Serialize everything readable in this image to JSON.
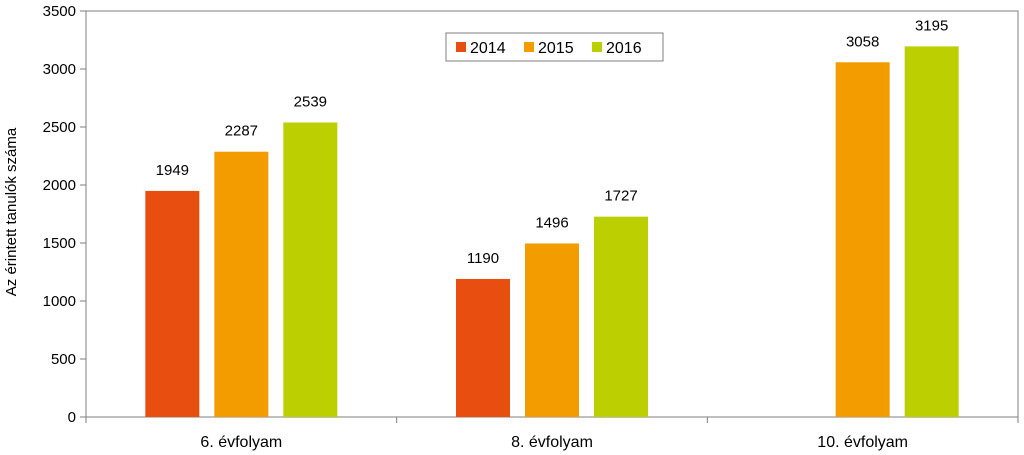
{
  "chart_data": {
    "type": "bar",
    "title": "",
    "xlabel": "",
    "ylabel": "Az érintett tanulók száma",
    "ylim": [
      0,
      3500
    ],
    "yticks": [
      0,
      500,
      1000,
      1500,
      2000,
      2500,
      3000,
      3500
    ],
    "grid": false,
    "legend_position": "top-center",
    "categories": [
      "6. évfolyam",
      "8. évfolyam",
      "10. évfolyam"
    ],
    "series": [
      {
        "name": "2014",
        "color": "#e84e10",
        "values": [
          1949,
          1190,
          null
        ]
      },
      {
        "name": "2015",
        "color": "#f39c00",
        "values": [
          2287,
          1496,
          3058
        ]
      },
      {
        "name": "2016",
        "color": "#bccf00",
        "values": [
          2539,
          1727,
          3195
        ]
      }
    ]
  }
}
